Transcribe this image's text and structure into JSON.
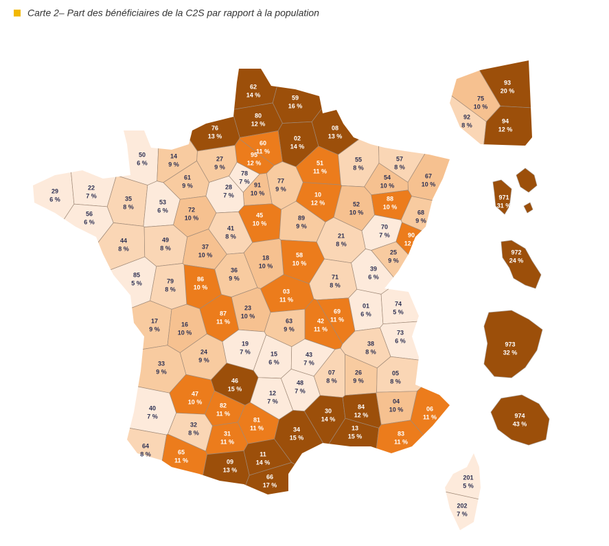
{
  "title": "Carte 2– Part des bénéficiaires de la C2S par rapport à la population",
  "departments": [
    {
      "code": "62",
      "value": 14,
      "label": "14 %",
      "color": "#9c4f0a"
    },
    {
      "code": "59",
      "value": 16,
      "label": "16 %",
      "color": "#9c4f0a"
    },
    {
      "code": "80",
      "value": 12,
      "label": "12 %",
      "color": "#9c4f0a"
    },
    {
      "code": "76",
      "value": 13,
      "label": "13 %",
      "color": "#9c4f0a"
    },
    {
      "code": "02",
      "value": 14,
      "label": "14 %",
      "color": "#9c4f0a"
    },
    {
      "code": "08",
      "value": 13,
      "label": "13 %",
      "color": "#9c4f0a"
    },
    {
      "code": "60",
      "value": 11,
      "label": "11 %",
      "color": "#ec7c1c"
    },
    {
      "code": "95",
      "value": 12,
      "label": "12 %",
      "color": "#ec7c1c"
    },
    {
      "code": "78",
      "value": 7,
      "label": "7 %",
      "color": "#fdeadb"
    },
    {
      "code": "91",
      "value": 10,
      "label": "10 %",
      "color": "#f6c190"
    },
    {
      "code": "77",
      "value": 9,
      "label": "9 %",
      "color": "#f8cba0"
    },
    {
      "code": "51",
      "value": 11,
      "label": "11 %",
      "color": "#ec7c1c"
    },
    {
      "code": "55",
      "value": 8,
      "label": "8 %",
      "color": "#fad6b5"
    },
    {
      "code": "57",
      "value": 8,
      "label": "8 %",
      "color": "#fad6b5"
    },
    {
      "code": "67",
      "value": 10,
      "label": "10 %",
      "color": "#f6c190"
    },
    {
      "code": "54",
      "value": 10,
      "label": "10 %",
      "color": "#f6c190"
    },
    {
      "code": "50",
      "value": 6,
      "label": "6 %",
      "color": "#fdeadb"
    },
    {
      "code": "14",
      "value": 9,
      "label": "9 %",
      "color": "#f8cba0"
    },
    {
      "code": "27",
      "value": 9,
      "label": "9 %",
      "color": "#f8cba0"
    },
    {
      "code": "28",
      "value": 7,
      "label": "7 %",
      "color": "#fdeadb"
    },
    {
      "code": "61",
      "value": 9,
      "label": "9 %",
      "color": "#f8cba0"
    },
    {
      "code": "29",
      "value": 6,
      "label": "6 %",
      "color": "#fdeadb"
    },
    {
      "code": "22",
      "value": 7,
      "label": "7 %",
      "color": "#fdeadb"
    },
    {
      "code": "35",
      "value": 8,
      "label": "8 %",
      "color": "#fad6b5"
    },
    {
      "code": "53",
      "value": 6,
      "label": "6 %",
      "color": "#fdeadb"
    },
    {
      "code": "72",
      "value": 10,
      "label": "10 %",
      "color": "#f6c190"
    },
    {
      "code": "45",
      "value": 10,
      "label": "10 %",
      "color": "#ec7c1c"
    },
    {
      "code": "89",
      "value": 9,
      "label": "9 %",
      "color": "#f8cba0"
    },
    {
      "code": "10",
      "value": 12,
      "label": "12 %",
      "color": "#ec7c1c"
    },
    {
      "code": "52",
      "value": 10,
      "label": "10 %",
      "color": "#f6c190"
    },
    {
      "code": "88",
      "value": 10,
      "label": "10 %",
      "color": "#ec7c1c"
    },
    {
      "code": "68",
      "value": 9,
      "label": "9 %",
      "color": "#f8cba0"
    },
    {
      "code": "90",
      "value": 12,
      "label": "12 %",
      "color": "#ec7c1c"
    },
    {
      "code": "56",
      "value": 6,
      "label": "6 %",
      "color": "#fdeadb"
    },
    {
      "code": "44",
      "value": 8,
      "label": "8 %",
      "color": "#fad6b5"
    },
    {
      "code": "49",
      "value": 8,
      "label": "8 %",
      "color": "#fad6b5"
    },
    {
      "code": "41",
      "value": 8,
      "label": "8 %",
      "color": "#fad6b5"
    },
    {
      "code": "37",
      "value": 10,
      "label": "10 %",
      "color": "#f6c190"
    },
    {
      "code": "21",
      "value": 8,
      "label": "8 %",
      "color": "#fad6b5"
    },
    {
      "code": "70",
      "value": 7,
      "label": "7 %",
      "color": "#fdeadb"
    },
    {
      "code": "58",
      "value": 10,
      "label": "10 %",
      "color": "#ec7c1c"
    },
    {
      "code": "18",
      "value": 10,
      "label": "10 %",
      "color": "#f6c190"
    },
    {
      "code": "36",
      "value": 9,
      "label": "9 %",
      "color": "#f8cba0"
    },
    {
      "code": "86",
      "value": 10,
      "label": "10 %",
      "color": "#ec7c1c"
    },
    {
      "code": "85",
      "value": 5,
      "label": "5 %",
      "color": "#fdeadb"
    },
    {
      "code": "79",
      "value": 8,
      "label": "8 %",
      "color": "#fad6b5"
    },
    {
      "code": "25",
      "value": 9,
      "label": "9 %",
      "color": "#f8cba0"
    },
    {
      "code": "39",
      "value": 6,
      "label": "6 %",
      "color": "#fdeadb"
    },
    {
      "code": "71",
      "value": 8,
      "label": "8 %",
      "color": "#fad6b5"
    },
    {
      "code": "03",
      "value": 11,
      "label": "11 %",
      "color": "#ec7c1c"
    },
    {
      "code": "23",
      "value": 10,
      "label": "10 %",
      "color": "#f6c190"
    },
    {
      "code": "87",
      "value": 11,
      "label": "11 %",
      "color": "#ec7c1c"
    },
    {
      "code": "69",
      "value": 11,
      "label": "11 %",
      "color": "#ec7c1c"
    },
    {
      "code": "42",
      "value": 11,
      "label": "11 %",
      "color": "#ec7c1c"
    },
    {
      "code": "01",
      "value": 6,
      "label": "6 %",
      "color": "#fdeadb"
    },
    {
      "code": "74",
      "value": 5,
      "label": "5 %",
      "color": "#fdeadb"
    },
    {
      "code": "63",
      "value": 9,
      "label": "9 %",
      "color": "#f8cba0"
    },
    {
      "code": "17",
      "value": 9,
      "label": "9 %",
      "color": "#f8cba0"
    },
    {
      "code": "16",
      "value": 10,
      "label": "10 %",
      "color": "#f6c190"
    },
    {
      "code": "73",
      "value": 6,
      "label": "6 %",
      "color": "#fdeadb"
    },
    {
      "code": "19",
      "value": 7,
      "label": "7 %",
      "color": "#fdeadb"
    },
    {
      "code": "24",
      "value": 9,
      "label": "9 %",
      "color": "#f8cba0"
    },
    {
      "code": "15",
      "value": 6,
      "label": "6 %",
      "color": "#fdeadb"
    },
    {
      "code": "43",
      "value": 7,
      "label": "7 %",
      "color": "#fdeadb"
    },
    {
      "code": "38",
      "value": 8,
      "label": "8 %",
      "color": "#fad6b5"
    },
    {
      "code": "33",
      "value": 9,
      "label": "9 %",
      "color": "#f8cba0"
    },
    {
      "code": "07",
      "value": 8,
      "label": "8 %",
      "color": "#fad6b5"
    },
    {
      "code": "26",
      "value": 9,
      "label": "9 %",
      "color": "#f8cba0"
    },
    {
      "code": "05",
      "value": 8,
      "label": "8 %",
      "color": "#fad6b5"
    },
    {
      "code": "46",
      "value": 15,
      "label": "15 %",
      "color": "#9c4f0a"
    },
    {
      "code": "12",
      "value": 7,
      "label": "7 %",
      "color": "#fdeadb"
    },
    {
      "code": "48",
      "value": 7,
      "label": "7 %",
      "color": "#fdeadb"
    },
    {
      "code": "47",
      "value": 10,
      "label": "10 %",
      "color": "#ec7c1c"
    },
    {
      "code": "82",
      "value": 11,
      "label": "11 %",
      "color": "#ec7c1c"
    },
    {
      "code": "30",
      "value": 14,
      "label": "14 %",
      "color": "#9c4f0a"
    },
    {
      "code": "84",
      "value": 12,
      "label": "12 %",
      "color": "#9c4f0a"
    },
    {
      "code": "04",
      "value": 10,
      "label": "10 %",
      "color": "#f6c190"
    },
    {
      "code": "06",
      "value": 11,
      "label": "11 %",
      "color": "#ec7c1c"
    },
    {
      "code": "40",
      "value": 7,
      "label": "7 %",
      "color": "#fdeadb"
    },
    {
      "code": "32",
      "value": 8,
      "label": "8 %",
      "color": "#fad6b5"
    },
    {
      "code": "81",
      "value": 11,
      "label": "11 %",
      "color": "#ec7c1c"
    },
    {
      "code": "31",
      "value": 11,
      "label": "11 %",
      "color": "#ec7c1c"
    },
    {
      "code": "34",
      "value": 15,
      "label": "15 %",
      "color": "#9c4f0a"
    },
    {
      "code": "13",
      "value": 15,
      "label": "15 %",
      "color": "#9c4f0a"
    },
    {
      "code": "83",
      "value": 11,
      "label": "11 %",
      "color": "#ec7c1c"
    },
    {
      "code": "64",
      "value": 8,
      "label": "8 %",
      "color": "#fad6b5"
    },
    {
      "code": "65",
      "value": 11,
      "label": "11 %",
      "color": "#ec7c1c"
    },
    {
      "code": "09",
      "value": 13,
      "label": "13 %",
      "color": "#9c4f0a"
    },
    {
      "code": "11",
      "value": 14,
      "label": "14 %",
      "color": "#9c4f0a"
    },
    {
      "code": "66",
      "value": 17,
      "label": "17 %",
      "color": "#9c4f0a"
    },
    {
      "code": "93",
      "value": 20,
      "label": "20 %",
      "color": "#9c4f0a"
    },
    {
      "code": "75",
      "value": 10,
      "label": "10 %",
      "color": "#f6c190"
    },
    {
      "code": "92",
      "value": 8,
      "label": "8 %",
      "color": "#fad6b5"
    },
    {
      "code": "94",
      "value": 12,
      "label": "12 %",
      "color": "#9c4f0a"
    },
    {
      "code": "971",
      "value": 31,
      "label": "31 %",
      "color": "#9c4f0a"
    },
    {
      "code": "972",
      "value": 24,
      "label": "24 %",
      "color": "#9c4f0a"
    },
    {
      "code": "973",
      "value": 32,
      "label": "32 %",
      "color": "#9c4f0a"
    },
    {
      "code": "974",
      "value": 43,
      "label": "43 %",
      "color": "#9c4f0a"
    },
    {
      "code": "201",
      "value": 5,
      "label": "5 %",
      "color": "#fdeadb"
    },
    {
      "code": "202",
      "value": 7,
      "label": "7 %",
      "color": "#fdeadb"
    }
  ]
}
